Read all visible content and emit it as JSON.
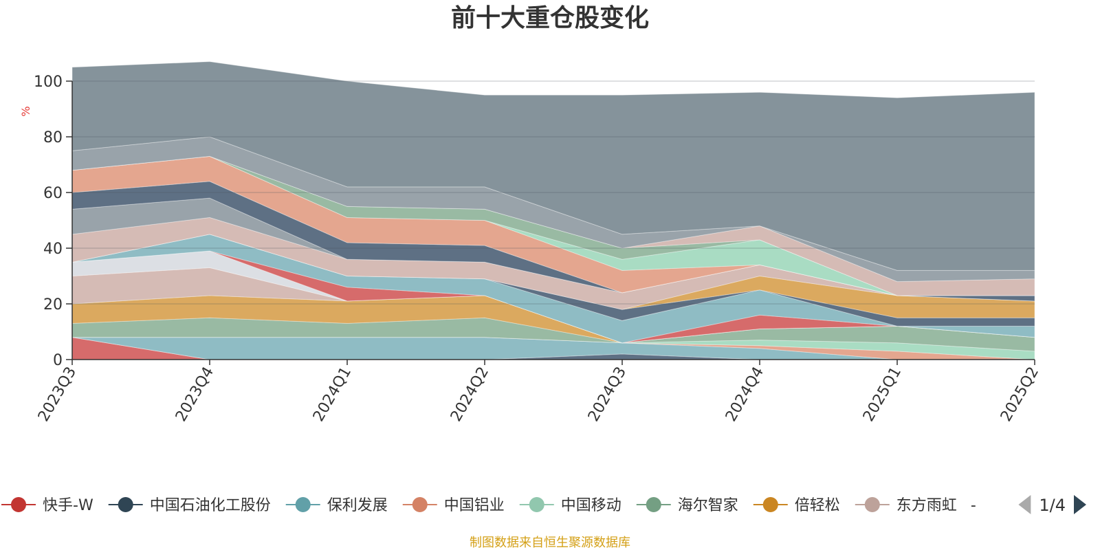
{
  "chart_data": {
    "type": "area",
    "title": "前十大重仓股变化",
    "ylabel": "%",
    "ylim": [
      0,
      100
    ],
    "yticks": [
      0,
      20,
      40,
      60,
      80,
      100
    ],
    "categories": [
      "2023Q3",
      "2023Q4",
      "2024Q1",
      "2024Q2",
      "2024Q3",
      "2024Q4",
      "2025Q1",
      "2025Q2"
    ],
    "stacked": true,
    "grid": true,
    "series": [
      {
        "name": "快手-W",
        "color": "#d66b6b",
        "values": [
          8,
          0,
          0,
          0,
          0,
          0,
          0,
          0
        ]
      },
      {
        "name": "中国石油化工股份",
        "color": "#5e7084",
        "values": [
          0,
          0,
          0,
          0,
          2,
          0,
          0,
          0
        ]
      },
      {
        "name": "保利发展",
        "color": "#8fbcc4",
        "values": [
          0,
          8,
          8,
          8,
          4,
          4,
          0,
          0
        ]
      },
      {
        "name": "中国铝业",
        "color": "#e4a68f",
        "values": [
          0,
          0,
          0,
          0,
          0,
          1,
          3,
          0
        ]
      },
      {
        "name": "中国移动",
        "color": "#a9dcc3",
        "values": [
          0,
          0,
          0,
          0,
          0,
          2,
          3,
          3
        ]
      },
      {
        "name": "海尔智家",
        "color": "#99baa3",
        "values": [
          5,
          7,
          5,
          7,
          0,
          4,
          6,
          5
        ]
      },
      {
        "name": "倍轻松",
        "color": "#dba95f",
        "values": [
          7,
          8,
          8,
          8,
          0,
          0,
          0,
          0
        ]
      },
      {
        "name": "东方雨虹",
        "color": "#d5bbb5",
        "values": [
          10,
          10,
          0,
          0,
          0,
          0,
          0,
          0
        ]
      },
      {
        "name": "",
        "color": "#dcdfe4",
        "values": [
          5,
          6,
          0,
          0,
          0,
          0,
          0,
          0
        ]
      },
      {
        "name": "",
        "color": "#d66b6b",
        "values": [
          0,
          0,
          5,
          0,
          0,
          5,
          0,
          0
        ]
      },
      {
        "name": "",
        "color": "#8fbcc4",
        "values": [
          0,
          6,
          4,
          6,
          8,
          9,
          0,
          4
        ]
      },
      {
        "name": "",
        "color": "#5e7084",
        "values": [
          0,
          0,
          0,
          0,
          4,
          0,
          3,
          3
        ]
      },
      {
        "name": "",
        "color": "#dba95f",
        "values": [
          0,
          0,
          0,
          0,
          0,
          5,
          8,
          6
        ]
      },
      {
        "name": "",
        "color": "#d5bbb5",
        "values": [
          10,
          6,
          6,
          6,
          6,
          4,
          0,
          0
        ]
      },
      {
        "name": "",
        "color": "#99a3aa",
        "values": [
          9,
          7,
          0,
          0,
          0,
          0,
          0,
          0
        ]
      },
      {
        "name": "",
        "color": "#5e7084",
        "values": [
          6,
          6,
          6,
          6,
          0,
          0,
          0,
          2
        ]
      },
      {
        "name": "",
        "color": "#e4a68f",
        "values": [
          8,
          9,
          9,
          9,
          8,
          0,
          0,
          0
        ]
      },
      {
        "name": "",
        "color": "#a9dcc3",
        "values": [
          0,
          0,
          0,
          0,
          4,
          9,
          0,
          0
        ]
      },
      {
        "name": "",
        "color": "#99baa3",
        "values": [
          0,
          0,
          4,
          4,
          4,
          0,
          0,
          0
        ]
      },
      {
        "name": "",
        "color": "#d5bbb5",
        "values": [
          0,
          0,
          0,
          0,
          0,
          5,
          5,
          6
        ]
      },
      {
        "name": "",
        "color": "#99a3aa",
        "values": [
          7,
          7,
          7,
          8,
          5,
          0,
          4,
          3
        ]
      },
      {
        "name": "",
        "color": "#85939b",
        "values": [
          30,
          27,
          38,
          33,
          50,
          48,
          62,
          64
        ]
      }
    ]
  },
  "legend": {
    "items": [
      {
        "label": "快手-W",
        "color": "#c23531"
      },
      {
        "label": "中国石油化工股份",
        "color": "#2f4554"
      },
      {
        "label": "保利发展",
        "color": "#61a0a8"
      },
      {
        "label": "中国铝业",
        "color": "#d48265"
      },
      {
        "label": "中国移动",
        "color": "#91c7ae"
      },
      {
        "label": "海尔智家",
        "color": "#749f83"
      },
      {
        "label": "倍轻松",
        "color": "#ca8622"
      },
      {
        "label": "东方雨虹",
        "color": "#bda29a"
      }
    ],
    "overflow_text": "-",
    "page_indicator": "1/4",
    "prev_icon": "triangle-left-icon",
    "next_icon": "triangle-right-icon",
    "prev_color": "#aaaaaa",
    "next_color": "#2f4554"
  },
  "source_note": "制图数据来自恒生聚源数据库"
}
